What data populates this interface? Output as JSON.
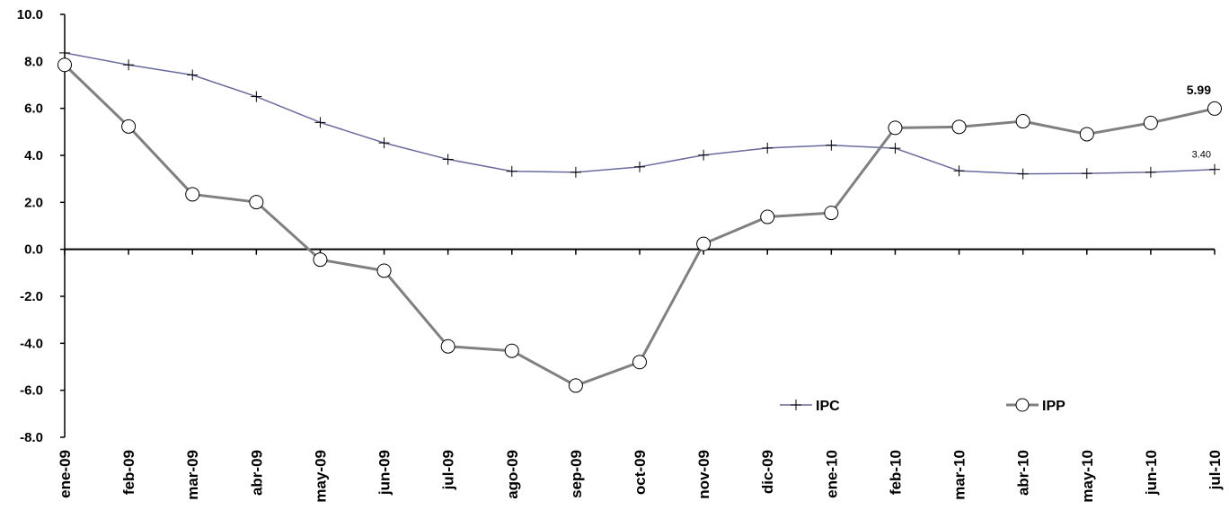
{
  "chart_data": {
    "type": "line",
    "title": "",
    "xlabel": "",
    "ylabel": "",
    "categories": [
      "ene-09",
      "feb-09",
      "mar-09",
      "abr-09",
      "may-09",
      "jun-09",
      "jul-09",
      "ago-09",
      "sep-09",
      "oct-09",
      "nov-09",
      "dic-09",
      "ene-10",
      "feb-10",
      "mar-10",
      "abr-10",
      "may-10",
      "jun-10",
      "jul-10"
    ],
    "y_ticks": [
      "10.0",
      "8.0",
      "6.0",
      "4.0",
      "2.0",
      "0.0",
      "-2.0",
      "-4.0",
      "-6.0",
      "-8.0"
    ],
    "ylim": [
      -8,
      10
    ],
    "grid": false,
    "legend_position": "bottom-right",
    "series": [
      {
        "name": "IPC",
        "marker": "cross",
        "color": "#6a6a9e",
        "values": [
          8.36,
          7.85,
          7.42,
          6.5,
          5.4,
          4.53,
          3.83,
          3.32,
          3.28,
          3.51,
          4.01,
          4.31,
          4.43,
          4.3,
          3.34,
          3.21,
          3.23,
          3.28,
          3.4
        ]
      },
      {
        "name": "IPP",
        "marker": "circle",
        "color": "#808080",
        "values": [
          7.85,
          5.23,
          2.34,
          2.01,
          -0.44,
          -0.91,
          -4.13,
          -4.32,
          -5.8,
          -4.8,
          0.23,
          1.38,
          1.55,
          5.17,
          5.21,
          5.45,
          4.9,
          5.38,
          5.99
        ]
      }
    ],
    "annotations": [
      {
        "series": "IPP",
        "index": 18,
        "text": "5.99"
      },
      {
        "series": "IPC",
        "index": 18,
        "text": "3.40"
      }
    ]
  }
}
